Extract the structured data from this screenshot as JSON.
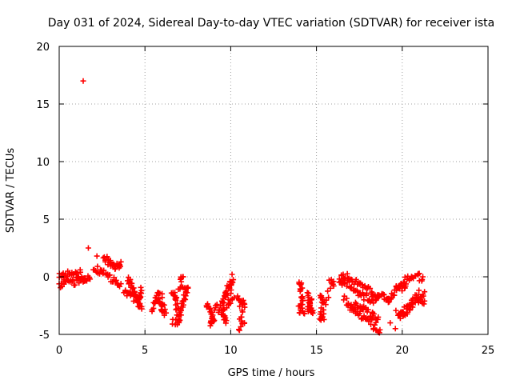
{
  "chart_data": {
    "type": "scatter",
    "title": "Day 031 of 2024, Sidereal Day-to-day VTEC variation (SDTVAR) for receiver ista",
    "xlabel": "GPS time / hours",
    "ylabel": "SDTVAR / TECUs",
    "xlim": [
      0,
      25
    ],
    "ylim": [
      -5,
      20
    ],
    "xticks": [
      0,
      5,
      10,
      15,
      20,
      25
    ],
    "yticks": [
      -5,
      0,
      5,
      10,
      15,
      20
    ],
    "grid": true,
    "marker": "plus",
    "color": "#ff0000",
    "outliers": [
      {
        "x": 1.4,
        "y": 17.0
      },
      {
        "x": 1.7,
        "y": 2.5
      },
      {
        "x": 2.2,
        "y": 1.8
      },
      {
        "x": 19.3,
        "y": -4.0
      },
      {
        "x": 19.6,
        "y": -4.5
      }
    ],
    "clusters": [
      {
        "name": "block-1",
        "points": [
          [
            0.0,
            -0.6
          ],
          [
            0.3,
            -0.3
          ],
          [
            0.6,
            -0.5
          ],
          [
            1.0,
            -0.4
          ],
          [
            1.4,
            0.0
          ],
          [
            1.8,
            -0.2
          ]
        ]
      },
      {
        "name": "block-1b",
        "points": [
          [
            0.0,
            0.3
          ],
          [
            0.4,
            0.2
          ],
          [
            0.8,
            0.1
          ],
          [
            1.2,
            0.3
          ],
          [
            1.5,
            -0.3
          ]
        ]
      },
      {
        "name": "block-2",
        "points": [
          [
            2.0,
            0.8
          ],
          [
            2.4,
            0.5
          ],
          [
            2.8,
            0.0
          ],
          [
            3.2,
            -0.3
          ],
          [
            3.6,
            -0.6
          ]
        ]
      },
      {
        "name": "block-2b",
        "points": [
          [
            2.6,
            1.9
          ],
          [
            2.9,
            1.2
          ],
          [
            3.1,
            0.8
          ],
          [
            3.4,
            1.0
          ],
          [
            3.6,
            1.3
          ]
        ]
      },
      {
        "name": "block-3",
        "points": [
          [
            4.0,
            0.0
          ],
          [
            4.2,
            -0.8
          ],
          [
            4.4,
            -1.6
          ],
          [
            4.6,
            -2.2
          ],
          [
            4.8,
            -2.6
          ]
        ]
      },
      {
        "name": "block-3b",
        "points": [
          [
            3.8,
            -1.2
          ],
          [
            4.1,
            -1.6
          ],
          [
            4.4,
            -1.9
          ],
          [
            4.7,
            -1.6
          ],
          [
            4.8,
            -1.2
          ]
        ]
      },
      {
        "name": "block-4",
        "points": [
          [
            5.4,
            -2.8
          ],
          [
            5.7,
            -2.2
          ],
          [
            6.0,
            -2.6
          ],
          [
            6.2,
            -3.0
          ],
          [
            5.6,
            -1.6
          ],
          [
            6.0,
            -1.8
          ]
        ]
      },
      {
        "name": "block-4b",
        "points": [
          [
            6.6,
            -1.2
          ],
          [
            6.8,
            -2.0
          ],
          [
            6.9,
            -2.8
          ],
          [
            7.0,
            -3.6
          ],
          [
            6.6,
            -4.1
          ]
        ]
      },
      {
        "name": "block-5",
        "points": [
          [
            7.0,
            -3.4
          ],
          [
            7.2,
            -2.6
          ],
          [
            7.3,
            -1.6
          ],
          [
            7.5,
            -0.8
          ],
          [
            7.0,
            -1.0
          ],
          [
            7.2,
            0.0
          ]
        ]
      },
      {
        "name": "block-6",
        "points": [
          [
            8.6,
            -2.6
          ],
          [
            8.8,
            -3.0
          ],
          [
            9.0,
            -3.6
          ],
          [
            8.8,
            -4.0
          ],
          [
            9.2,
            -2.4
          ]
        ]
      },
      {
        "name": "block-6b",
        "points": [
          [
            9.3,
            -2.8
          ],
          [
            9.5,
            -3.2
          ],
          [
            9.7,
            -3.8
          ],
          [
            9.5,
            -2.2
          ],
          [
            9.8,
            -1.6
          ]
        ]
      },
      {
        "name": "block-7",
        "points": [
          [
            9.6,
            -2.0
          ],
          [
            9.8,
            -1.2
          ],
          [
            10.0,
            -0.4
          ],
          [
            10.1,
            0.0
          ],
          [
            9.8,
            -2.8
          ],
          [
            10.2,
            -1.8
          ]
        ]
      },
      {
        "name": "block-7b",
        "points": [
          [
            10.4,
            -2.0
          ],
          [
            10.6,
            -2.4
          ],
          [
            10.8,
            -2.0
          ],
          [
            10.5,
            -4.3
          ],
          [
            10.8,
            -4.0
          ]
        ]
      },
      {
        "name": "block-8",
        "points": [
          [
            14.0,
            -0.6
          ],
          [
            14.1,
            -1.2
          ],
          [
            14.2,
            -1.8
          ],
          [
            14.0,
            -3.0
          ],
          [
            14.3,
            -3.2
          ]
        ]
      },
      {
        "name": "block-8b",
        "points": [
          [
            14.5,
            -1.5
          ],
          [
            14.6,
            -2.5
          ],
          [
            14.8,
            -2.9
          ],
          [
            14.5,
            -2.7
          ],
          [
            14.7,
            -2.0
          ]
        ]
      },
      {
        "name": "block-9",
        "points": [
          [
            15.2,
            -1.8
          ],
          [
            15.4,
            -2.0
          ],
          [
            15.2,
            -3.4
          ],
          [
            15.4,
            -3.6
          ],
          [
            15.8,
            -0.6
          ],
          [
            16.0,
            -0.4
          ]
        ]
      },
      {
        "name": "block-10",
        "points": [
          [
            16.3,
            -0.6
          ],
          [
            16.6,
            -0.2
          ],
          [
            17.0,
            -0.8
          ],
          [
            17.4,
            -1.5
          ],
          [
            17.8,
            -1.8
          ],
          [
            18.2,
            -2.0
          ],
          [
            18.6,
            -1.8
          ]
        ]
      },
      {
        "name": "block-10b",
        "points": [
          [
            16.4,
            0.0
          ],
          [
            16.8,
            0.1
          ],
          [
            17.2,
            -0.3
          ],
          [
            17.6,
            -0.9
          ],
          [
            18.0,
            -1.2
          ],
          [
            18.4,
            -1.4
          ],
          [
            18.8,
            -1.6
          ]
        ]
      },
      {
        "name": "block-10c",
        "points": [
          [
            16.6,
            -2.0
          ],
          [
            17.0,
            -2.3
          ],
          [
            17.4,
            -2.6
          ],
          [
            17.8,
            -2.9
          ],
          [
            18.2,
            -3.2
          ],
          [
            18.6,
            -3.5
          ]
        ]
      },
      {
        "name": "block-10d",
        "points": [
          [
            16.8,
            -2.4
          ],
          [
            17.2,
            -2.8
          ],
          [
            17.6,
            -3.4
          ],
          [
            18.0,
            -3.9
          ],
          [
            18.4,
            -4.3
          ],
          [
            18.7,
            -4.6
          ]
        ]
      },
      {
        "name": "block-11",
        "points": [
          [
            18.9,
            -1.6
          ],
          [
            19.2,
            -1.9
          ],
          [
            19.5,
            -1.5
          ],
          [
            19.8,
            -1.1
          ],
          [
            20.2,
            -0.8
          ]
        ]
      },
      {
        "name": "block-11b",
        "points": [
          [
            19.6,
            -1.0
          ],
          [
            20.0,
            -0.5
          ],
          [
            20.4,
            -0.2
          ],
          [
            20.8,
            -0.1
          ],
          [
            21.2,
            0.0
          ]
        ]
      },
      {
        "name": "block-11c",
        "points": [
          [
            19.8,
            -3.4
          ],
          [
            20.2,
            -2.8
          ],
          [
            20.6,
            -2.4
          ],
          [
            21.0,
            -2.1
          ],
          [
            21.3,
            -2.1
          ]
        ]
      },
      {
        "name": "block-11d",
        "points": [
          [
            19.7,
            -3.0
          ],
          [
            20.1,
            -3.1
          ],
          [
            20.5,
            -2.6
          ],
          [
            20.9,
            -1.6
          ],
          [
            21.3,
            -1.3
          ]
        ]
      }
    ]
  }
}
